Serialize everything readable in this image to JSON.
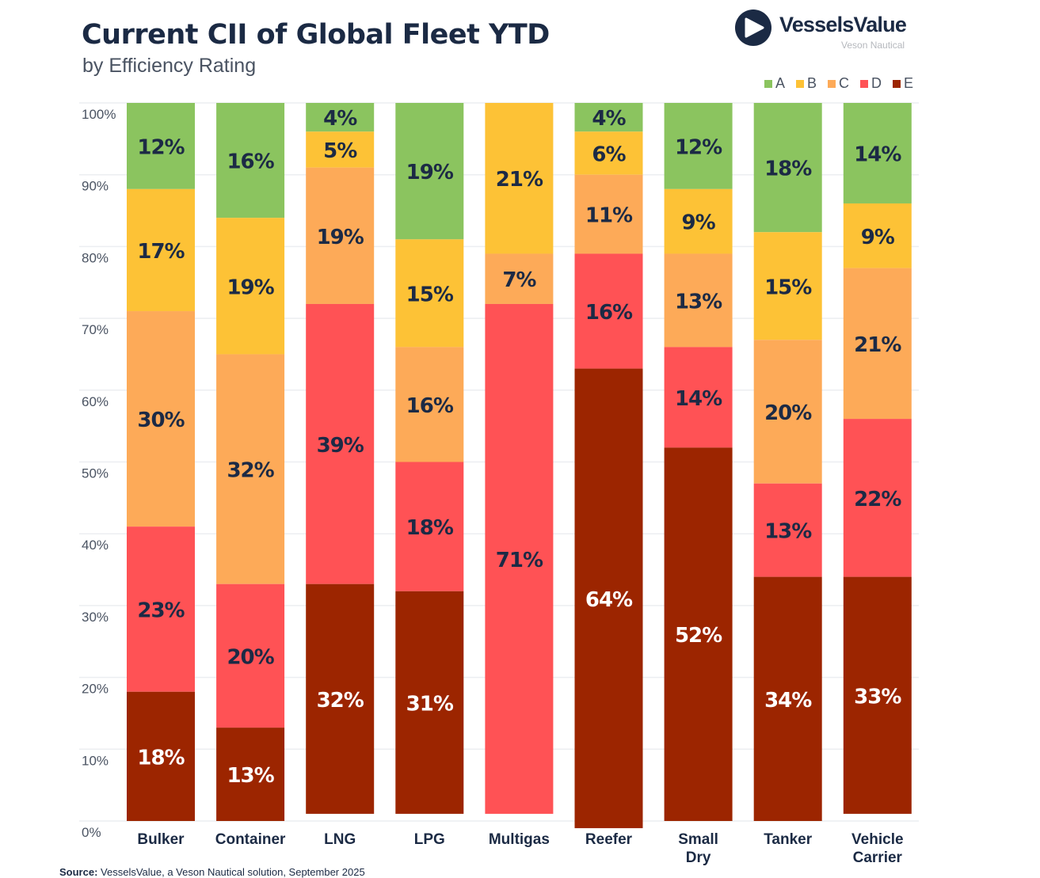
{
  "header": {
    "title": "Current CII of Global Fleet YTD",
    "subtitle": "by Efficiency Rating"
  },
  "logo": {
    "name": "VesselsValue",
    "tagline": "Veson Nautical",
    "icon": "play-triangle-in-circle-icon"
  },
  "footer": {
    "source_label": "Source:",
    "source_text": "VesselsValue, a Veson Nautical solution, September 2025"
  },
  "chart_data": {
    "type": "bar",
    "stacked": true,
    "title": "Current CII of Global Fleet YTD",
    "subtitle": "by Efficiency Rating",
    "xlabel": "",
    "ylabel": "",
    "ylim": [
      0,
      100
    ],
    "yticks": [
      "0%",
      "10%",
      "20%",
      "30%",
      "40%",
      "50%",
      "60%",
      "70%",
      "80%",
      "90%",
      "100%"
    ],
    "grid": true,
    "legend_position": "top-right",
    "categories": [
      "Bulker",
      "Container",
      "LNG",
      "LPG",
      "Multigas",
      "Reefer",
      "Small Dry",
      "Tanker",
      "Vehicle Carrier"
    ],
    "series": [
      {
        "name": "A",
        "color": "#8bc45f",
        "label_color": "#1c2a45",
        "values": [
          12,
          16,
          4,
          19,
          0,
          4,
          12,
          18,
          14
        ]
      },
      {
        "name": "B",
        "color": "#fdc236",
        "label_color": "#1c2a45",
        "values": [
          17,
          19,
          5,
          15,
          21,
          6,
          9,
          15,
          9
        ]
      },
      {
        "name": "C",
        "color": "#fdaa58",
        "label_color": "#1c2a45",
        "values": [
          30,
          32,
          19,
          16,
          7,
          11,
          13,
          20,
          21
        ]
      },
      {
        "name": "D",
        "color": "#ff5255",
        "label_color": "#1c2a45",
        "values": [
          23,
          20,
          39,
          18,
          71,
          16,
          14,
          13,
          22
        ]
      },
      {
        "name": "E",
        "color": "#9c2500",
        "label_color": "#ffffff",
        "values": [
          18,
          13,
          32,
          31,
          0,
          64,
          52,
          34,
          33
        ]
      }
    ]
  }
}
